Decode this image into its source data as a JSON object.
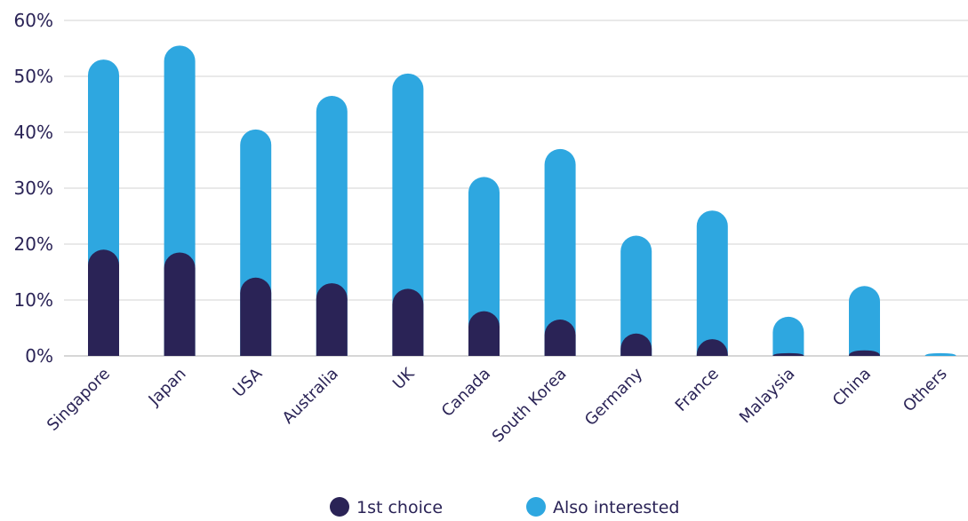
{
  "chart_data": {
    "type": "bar",
    "stacked": true,
    "title": "",
    "xlabel": "",
    "ylabel": "",
    "ylim": [
      0,
      60
    ],
    "yticks": [
      "0%",
      "10%",
      "20%",
      "30%",
      "40%",
      "50%",
      "60%"
    ],
    "grid": true,
    "legend_position": "bottom",
    "categories": [
      "Singapore",
      "Japan",
      "USA",
      "Australia",
      "UK",
      "Canada",
      "South Korea",
      "Germany",
      "France",
      "Malaysia",
      "China",
      "Others"
    ],
    "series": [
      {
        "name": "1st choice",
        "color": "#2a2356",
        "values": [
          19,
          18.5,
          14,
          13,
          12,
          8,
          6.5,
          4,
          3,
          0.5,
          1,
          0
        ]
      },
      {
        "name": "Also interested",
        "color": "#2ea7e0",
        "values": [
          34,
          37,
          26.5,
          33.5,
          38.5,
          24,
          30.5,
          17.5,
          23,
          6.5,
          11.5,
          0.5
        ]
      }
    ]
  }
}
